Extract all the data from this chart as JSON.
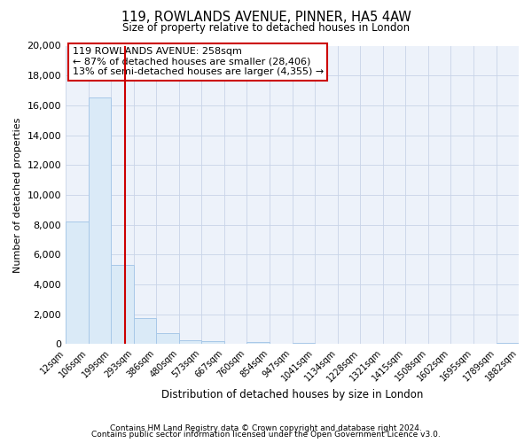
{
  "title": "119, ROWLANDS AVENUE, PINNER, HA5 4AW",
  "subtitle": "Size of property relative to detached houses in London",
  "xlabel": "Distribution of detached houses by size in London",
  "ylabel": "Number of detached properties",
  "bar_color": "#daeaf7",
  "bar_edge_color": "#a8c8e8",
  "annotation_box_color": "#ffffff",
  "annotation_box_edge_color": "#cc0000",
  "vline_color": "#cc0000",
  "vline_x": 258,
  "annotation_line1": "119 ROWLANDS AVENUE: 258sqm",
  "annotation_line2": "← 87% of detached houses are smaller (28,406)",
  "annotation_line3": "13% of semi-detached houses are larger (4,355) →",
  "footer_line1": "Contains HM Land Registry data © Crown copyright and database right 2024.",
  "footer_line2": "Contains public sector information licensed under the Open Government Licence v3.0.",
  "bins": [
    12,
    106,
    199,
    293,
    386,
    480,
    573,
    667,
    760,
    854,
    947,
    1041,
    1134,
    1228,
    1321,
    1415,
    1508,
    1602,
    1695,
    1789,
    1882
  ],
  "counts": [
    8200,
    16500,
    5300,
    1750,
    750,
    280,
    200,
    0,
    130,
    0,
    100,
    0,
    0,
    0,
    0,
    0,
    0,
    0,
    0,
    100
  ],
  "ylim": [
    0,
    20000
  ],
  "yticks": [
    0,
    2000,
    4000,
    6000,
    8000,
    10000,
    12000,
    14000,
    16000,
    18000,
    20000
  ],
  "background_color": "#ffffff",
  "plot_bg_color": "#edf2fa"
}
